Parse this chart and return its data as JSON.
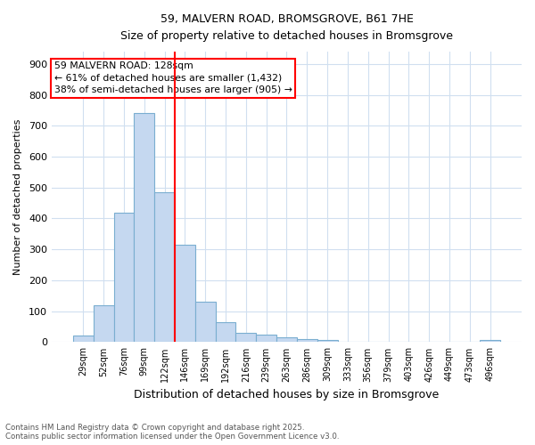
{
  "title_line1": "59, MALVERN ROAD, BROMSGROVE, B61 7HE",
  "title_line2": "Size of property relative to detached houses in Bromsgrove",
  "xlabel": "Distribution of detached houses by size in Bromsgrove",
  "ylabel": "Number of detached properties",
  "bar_labels": [
    "29sqm",
    "52sqm",
    "76sqm",
    "99sqm",
    "122sqm",
    "146sqm",
    "169sqm",
    "192sqm",
    "216sqm",
    "239sqm",
    "263sqm",
    "286sqm",
    "309sqm",
    "333sqm",
    "356sqm",
    "379sqm",
    "403sqm",
    "426sqm",
    "449sqm",
    "473sqm",
    "496sqm"
  ],
  "bar_values": [
    20,
    120,
    420,
    740,
    485,
    315,
    130,
    65,
    30,
    25,
    15,
    10,
    7,
    0,
    0,
    0,
    0,
    0,
    0,
    0,
    7
  ],
  "bar_color": "#c5d8f0",
  "bar_edge_color": "#7aaed0",
  "vline_color": "red",
  "annotation_title": "59 MALVERN ROAD: 128sqm",
  "annotation_line1": "← 61% of detached houses are smaller (1,432)",
  "annotation_line2": "38% of semi-detached houses are larger (905) →",
  "annotation_box_color": "white",
  "annotation_box_edgecolor": "red",
  "ylim": [
    0,
    940
  ],
  "yticks": [
    0,
    100,
    200,
    300,
    400,
    500,
    600,
    700,
    800,
    900
  ],
  "footer_line1": "Contains HM Land Registry data © Crown copyright and database right 2025.",
  "footer_line2": "Contains public sector information licensed under the Open Government Licence v3.0.",
  "bg_color": "#ffffff",
  "grid_color": "#d0dff0"
}
